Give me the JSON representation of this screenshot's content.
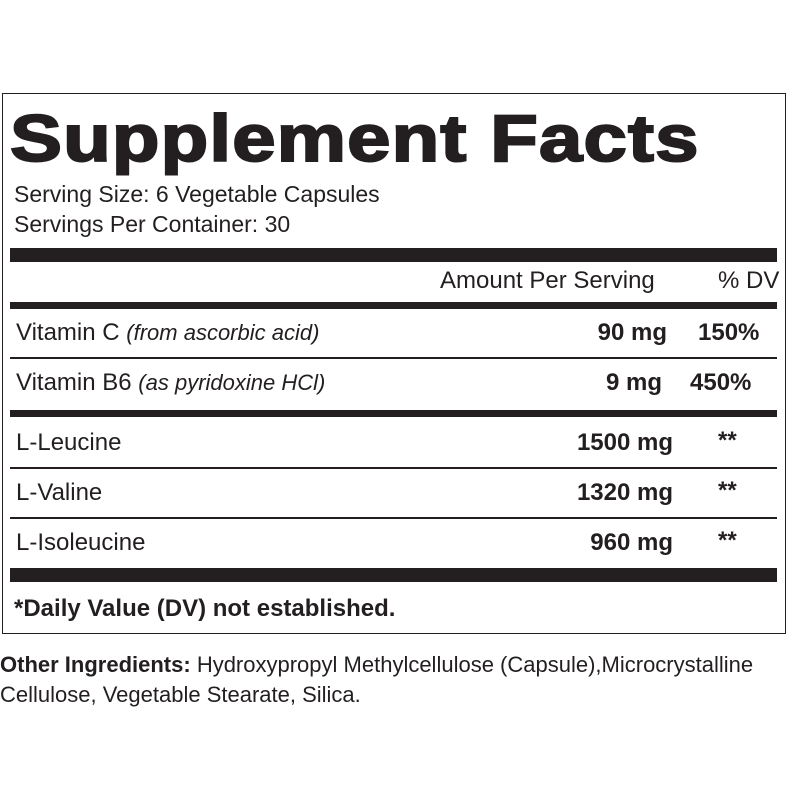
{
  "title": "Supplement Facts",
  "serving_size": "Serving Size: 6 Vegetable Capsules",
  "servings_per_container": "Servings Per Container: 30",
  "header": {
    "amount": "Amount Per Serving",
    "dv": "% DV"
  },
  "vitamins": [
    {
      "name": "Vitamin C",
      "source": "(from ascorbic acid)",
      "amount": "90 mg",
      "dv": "150%"
    },
    {
      "name": "Vitamin B6",
      "source": "(as pyridoxine HCl)",
      "amount": "9 mg",
      "dv": "450%"
    }
  ],
  "aminos": [
    {
      "name": "L-Leucine",
      "amount": "1500 mg",
      "dv": "**"
    },
    {
      "name": "L-Valine",
      "amount": "1320 mg",
      "dv": "**"
    },
    {
      "name": "L-Isoleucine",
      "amount": "960 mg",
      "dv": "**"
    }
  ],
  "footnote": "*Daily Value (DV) not established.",
  "other_ingredients": {
    "label": "Other Ingredients:",
    "text": "Hydroxypropyl Methylcellulose (Capsule),Microcrystalline Cellulose, Vegetable Stearate, Silica."
  }
}
